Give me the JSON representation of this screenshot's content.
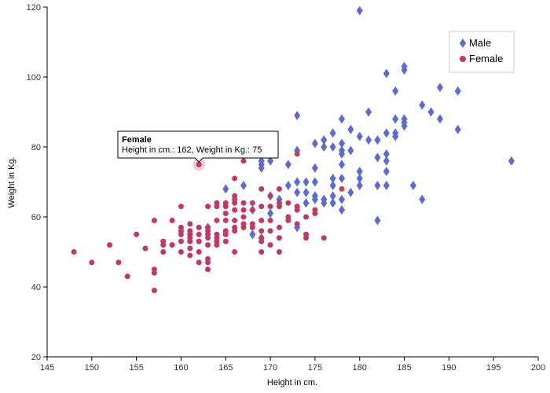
{
  "chart_data": {
    "type": "scatter",
    "xlabel": "Height in cm.",
    "ylabel": "Weight in Kg.",
    "xlim": [
      145,
      200
    ],
    "ylim": [
      20,
      120
    ],
    "xticks": [
      145,
      150,
      155,
      160,
      165,
      170,
      175,
      180,
      185,
      190,
      195,
      200
    ],
    "yticks": [
      20,
      40,
      60,
      80,
      100,
      120
    ],
    "grid": false,
    "legend_position": "top-right",
    "series": [
      {
        "name": "Male",
        "marker": "diamond",
        "color": "#5b6bd4",
        "points": [
          [
            163,
            57
          ],
          [
            165,
            68
          ],
          [
            167,
            69
          ],
          [
            168,
            55
          ],
          [
            168,
            62
          ],
          [
            169,
            54
          ],
          [
            169,
            75
          ],
          [
            169,
            76
          ],
          [
            169,
            74
          ],
          [
            170,
            66
          ],
          [
            170,
            61
          ],
          [
            170,
            76
          ],
          [
            171,
            65
          ],
          [
            172,
            69
          ],
          [
            172,
            75
          ],
          [
            173,
            89
          ],
          [
            173,
            79
          ],
          [
            173,
            70
          ],
          [
            173,
            67
          ],
          [
            173,
            57
          ],
          [
            174,
            70
          ],
          [
            174,
            67
          ],
          [
            174,
            64
          ],
          [
            175,
            81
          ],
          [
            175,
            74
          ],
          [
            175,
            70
          ],
          [
            175,
            66
          ],
          [
            175,
            65
          ],
          [
            176,
            82
          ],
          [
            176,
            80
          ],
          [
            176,
            65
          ],
          [
            176,
            64
          ],
          [
            177,
            84
          ],
          [
            177,
            80
          ],
          [
            177,
            71
          ],
          [
            177,
            69
          ],
          [
            177,
            66
          ],
          [
            177,
            64
          ],
          [
            178,
            88
          ],
          [
            178,
            81
          ],
          [
            178,
            79
          ],
          [
            178,
            78
          ],
          [
            178,
            75
          ],
          [
            178,
            71
          ],
          [
            178,
            65
          ],
          [
            178,
            62
          ],
          [
            179,
            85
          ],
          [
            179,
            79
          ],
          [
            179,
            67
          ],
          [
            180,
            119
          ],
          [
            180,
            83
          ],
          [
            180,
            73
          ],
          [
            180,
            71
          ],
          [
            180,
            69
          ],
          [
            181,
            90
          ],
          [
            181,
            82
          ],
          [
            182,
            82
          ],
          [
            182,
            77
          ],
          [
            182,
            69
          ],
          [
            182,
            59
          ],
          [
            183,
            101
          ],
          [
            183,
            84
          ],
          [
            183,
            78
          ],
          [
            183,
            76
          ],
          [
            183,
            73
          ],
          [
            183,
            69
          ],
          [
            184,
            96
          ],
          [
            184,
            88
          ],
          [
            184,
            84
          ],
          [
            184,
            83
          ],
          [
            185,
            103
          ],
          [
            185,
            102
          ],
          [
            185,
            88
          ],
          [
            185,
            87
          ],
          [
            185,
            86
          ],
          [
            186,
            69
          ],
          [
            187,
            92
          ],
          [
            187,
            65
          ],
          [
            188,
            90
          ],
          [
            189,
            97
          ],
          [
            189,
            88
          ],
          [
            191,
            96
          ],
          [
            191,
            85
          ],
          [
            197,
            76
          ]
        ]
      },
      {
        "name": "Female",
        "marker": "circle",
        "color": "#c2395e",
        "points": [
          [
            148,
            50
          ],
          [
            150,
            47
          ],
          [
            152,
            52
          ],
          [
            153,
            47
          ],
          [
            154,
            43
          ],
          [
            155,
            55
          ],
          [
            156,
            51
          ],
          [
            157,
            59
          ],
          [
            157,
            45
          ],
          [
            157,
            44
          ],
          [
            157,
            39
          ],
          [
            158,
            53
          ],
          [
            158,
            52
          ],
          [
            158,
            50
          ],
          [
            159,
            59
          ],
          [
            159,
            52
          ],
          [
            160,
            63
          ],
          [
            160,
            57
          ],
          [
            160,
            56
          ],
          [
            160,
            55
          ],
          [
            160,
            53
          ],
          [
            160,
            50
          ],
          [
            161,
            58
          ],
          [
            161,
            56
          ],
          [
            161,
            55
          ],
          [
            161,
            54
          ],
          [
            161,
            53
          ],
          [
            161,
            51
          ],
          [
            161,
            49
          ],
          [
            162,
            75
          ],
          [
            162,
            57
          ],
          [
            162,
            55
          ],
          [
            162,
            53
          ],
          [
            162,
            50
          ],
          [
            162,
            47
          ],
          [
            163,
            63
          ],
          [
            163,
            57
          ],
          [
            163,
            56
          ],
          [
            163,
            55
          ],
          [
            163,
            54
          ],
          [
            163,
            52
          ],
          [
            163,
            48
          ],
          [
            163,
            47
          ],
          [
            163,
            45
          ],
          [
            164,
            64
          ],
          [
            164,
            63
          ],
          [
            164,
            59
          ],
          [
            164,
            55
          ],
          [
            164,
            54
          ],
          [
            164,
            53
          ],
          [
            164,
            52
          ],
          [
            165,
            64
          ],
          [
            165,
            63
          ],
          [
            165,
            61
          ],
          [
            165,
            59
          ],
          [
            165,
            56
          ],
          [
            165,
            55
          ],
          [
            165,
            53
          ],
          [
            166,
            71
          ],
          [
            166,
            66
          ],
          [
            166,
            65
          ],
          [
            166,
            64
          ],
          [
            166,
            62
          ],
          [
            166,
            59
          ],
          [
            166,
            57
          ],
          [
            166,
            56
          ],
          [
            166,
            50
          ],
          [
            167,
            76
          ],
          [
            167,
            64
          ],
          [
            167,
            62
          ],
          [
            167,
            60
          ],
          [
            167,
            58
          ],
          [
            167,
            57
          ],
          [
            168,
            64
          ],
          [
            168,
            62
          ],
          [
            168,
            58
          ],
          [
            168,
            57
          ],
          [
            169,
            68
          ],
          [
            169,
            63
          ],
          [
            169,
            59
          ],
          [
            169,
            56
          ],
          [
            169,
            54
          ],
          [
            169,
            53
          ],
          [
            169,
            50
          ],
          [
            170,
            66
          ],
          [
            170,
            63
          ],
          [
            170,
            59
          ],
          [
            170,
            56
          ],
          [
            170,
            52
          ],
          [
            171,
            68
          ],
          [
            171,
            64
          ],
          [
            171,
            63
          ],
          [
            171,
            57
          ],
          [
            171,
            54
          ],
          [
            171,
            50
          ],
          [
            172,
            64
          ],
          [
            172,
            60
          ],
          [
            172,
            59
          ],
          [
            173,
            78
          ],
          [
            173,
            63
          ],
          [
            173,
            62
          ],
          [
            173,
            58
          ],
          [
            174,
            60
          ],
          [
            174,
            55
          ],
          [
            174,
            54
          ],
          [
            175,
            62
          ],
          [
            175,
            61
          ],
          [
            176,
            54
          ],
          [
            178,
            68
          ]
        ]
      }
    ],
    "tooltip": {
      "title": "Female",
      "body": "Height in cm.: 162, Weight in Kg.: 75",
      "point": [
        162,
        75
      ]
    }
  }
}
